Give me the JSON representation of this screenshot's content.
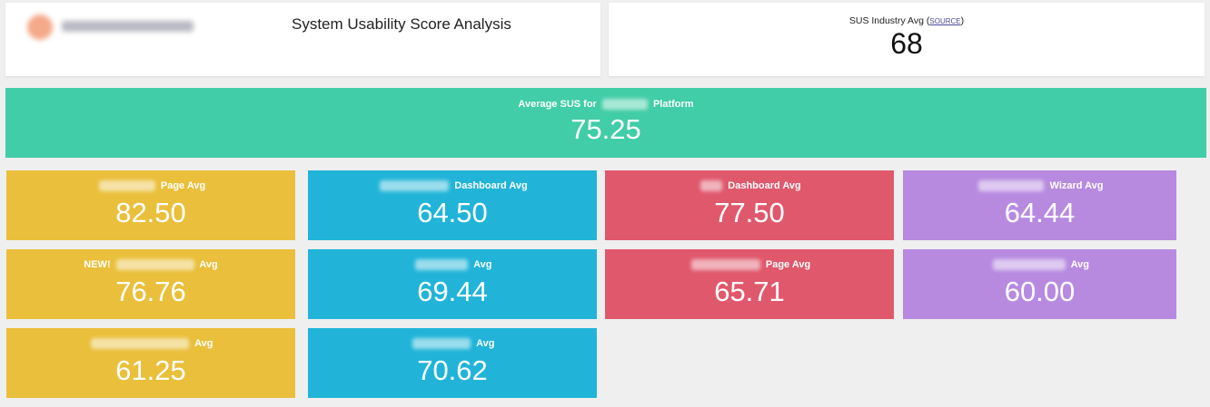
{
  "header": {
    "title": "System Usability Score Analysis"
  },
  "industry": {
    "label": "SUS Industry Avg",
    "source_link": "SOURCE",
    "value": "68"
  },
  "platform": {
    "label_prefix": "Average SUS for",
    "label_suffix": "Platform",
    "value": "75.25"
  },
  "tiles": [
    {
      "label": "Page Avg",
      "value": "82.50"
    },
    {
      "label": "Dashboard Avg",
      "value": "64.50"
    },
    {
      "label": "Dashboard Avg",
      "value": "77.50"
    },
    {
      "label": "Wizard Avg",
      "value": "64.44"
    },
    {
      "label_prefix": "NEW!",
      "label": "Avg",
      "value": "76.76"
    },
    {
      "label": "Avg",
      "value": "69.44"
    },
    {
      "label": "Page Avg",
      "value": "65.71"
    },
    {
      "label": "Avg",
      "value": "60.00"
    },
    {
      "label": "Avg",
      "value": "61.25"
    },
    {
      "label": "Avg",
      "value": "70.62"
    }
  ],
  "colors": {
    "background": "#efefef",
    "platform": "#41cda7",
    "yellow": "#eabf3b",
    "blue": "#21b4d8",
    "red": "#e0586c",
    "purple": "#b78ae0"
  }
}
